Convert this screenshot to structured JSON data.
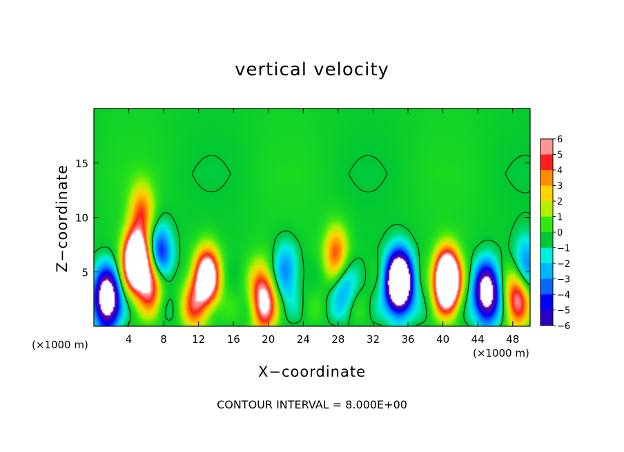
{
  "chart_data": {
    "type": "heatmap",
    "title": "vertical velocity",
    "xlabel": "X−coordinate",
    "ylabel": "Z−coordinate",
    "x_unit": "(×1000 m)",
    "xlim": [
      0,
      50
    ],
    "ylim": [
      0,
      20
    ],
    "x_ticks": [
      4,
      8,
      12,
      16,
      20,
      24,
      28,
      32,
      36,
      40,
      44,
      48
    ],
    "y_ticks": [
      5,
      10,
      15
    ],
    "colorbar_ticks": [
      "6",
      "5",
      "4",
      "3",
      "2",
      "1",
      "0",
      "−1",
      "−2",
      "−3",
      "−4",
      "−5",
      "−6"
    ],
    "color_range": [
      -6,
      6
    ],
    "contour_interval_label": "CONTOUR INTERVAL = 8.000E+00",
    "grid": false,
    "features": [
      {
        "x": 1.5,
        "z": 2.5,
        "w": -10
      },
      {
        "x": 4.8,
        "z": 6.0,
        "w": 12
      },
      {
        "x": 5.5,
        "z": 10.5,
        "w": 4
      },
      {
        "x": 6.5,
        "z": 4.0,
        "w": 6
      },
      {
        "x": 7.5,
        "z": 6.5,
        "w": -5
      },
      {
        "x": 13.0,
        "z": 4.5,
        "w": 9
      },
      {
        "x": 11.5,
        "z": 2.0,
        "w": 4
      },
      {
        "x": 19.5,
        "z": 2.0,
        "w": 6
      },
      {
        "x": 19.0,
        "z": 4.0,
        "w": 2
      },
      {
        "x": 22.0,
        "z": 5.0,
        "w": -3
      },
      {
        "x": 27.8,
        "z": 6.5,
        "w": 5
      },
      {
        "x": 28.5,
        "z": 4.0,
        "w": -3
      },
      {
        "x": 35.0,
        "z": 4.0,
        "w": -14
      },
      {
        "x": 40.5,
        "z": 4.2,
        "w": 14
      },
      {
        "x": 45.0,
        "z": 3.0,
        "w": -9
      },
      {
        "x": 48.5,
        "z": 2.5,
        "w": 6
      },
      {
        "x": 49.5,
        "z": 5.5,
        "w": -3
      }
    ],
    "contour_levels": [
      0
    ]
  }
}
